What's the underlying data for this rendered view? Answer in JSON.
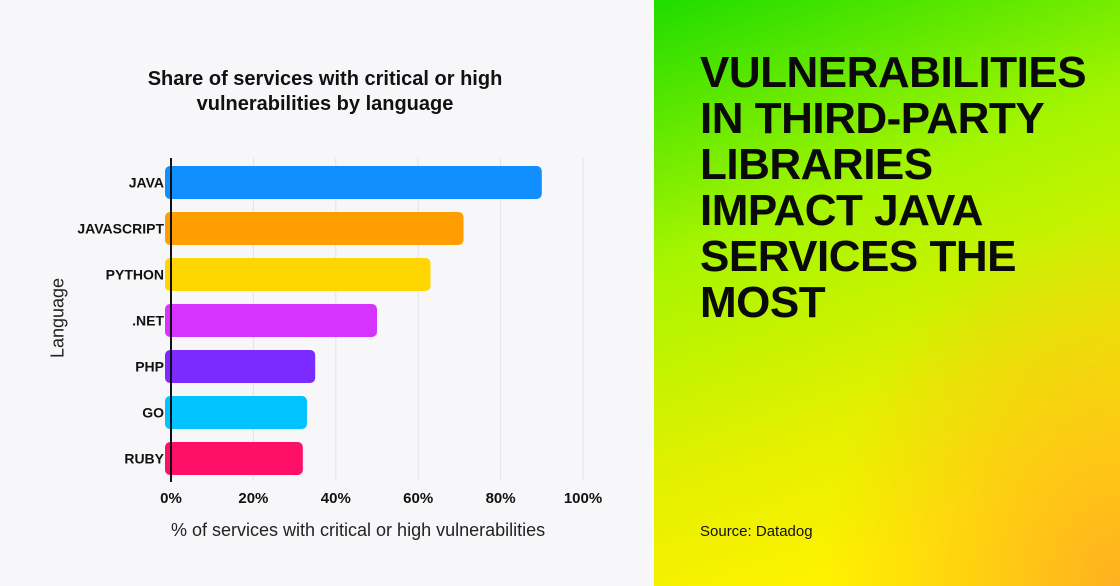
{
  "chart_data": {
    "type": "bar",
    "orientation": "horizontal",
    "title": "Share of services with critical or high vulnerabilities by language",
    "xlabel": "% of services with critical or high vulnerabilities",
    "ylabel": "Language",
    "categories": [
      "JAVA",
      "JAVASCRIPT",
      "PYTHON",
      ".NET",
      "PHP",
      "GO",
      "RUBY"
    ],
    "values": [
      90,
      71,
      63,
      50,
      35,
      33,
      32
    ],
    "colors": [
      "#128ffe",
      "#ff9e00",
      "#ffd600",
      "#d633ff",
      "#7b2bff",
      "#00c3ff",
      "#ff1068"
    ],
    "xlim": [
      0,
      100
    ],
    "xticks": [
      "0%",
      "20%",
      "40%",
      "60%",
      "80%",
      "100%"
    ],
    "grid": true
  },
  "headline": "VULNERABILITIES IN THIRD-PARTY LIBRARIES IMPACT JAVA SERVICES THE MOST",
  "source": "Source: Datadog"
}
